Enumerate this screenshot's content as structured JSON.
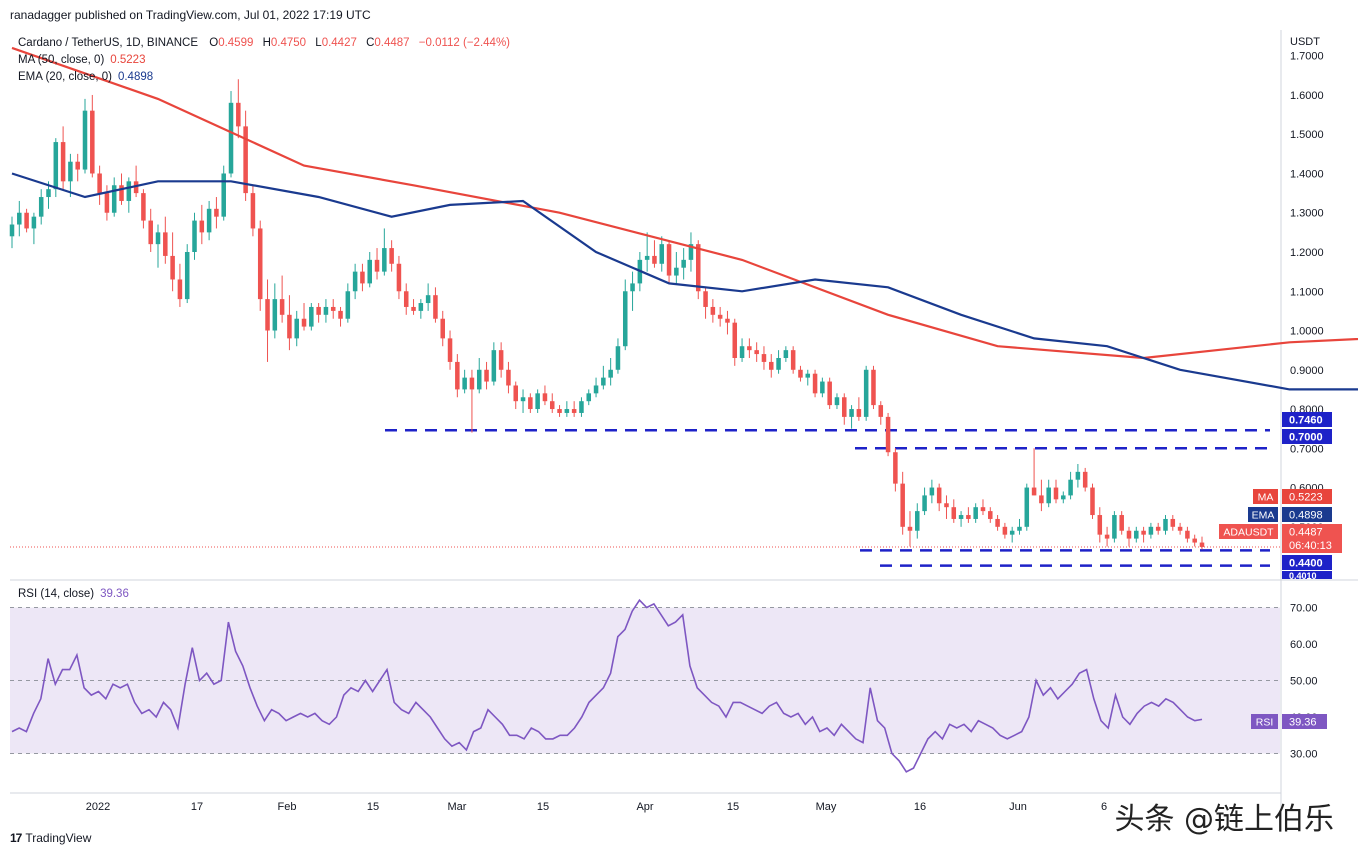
{
  "header": {
    "published": "ranadagger published on TradingView.com, Jul 01, 2022 17:19 UTC"
  },
  "legend": {
    "symbol": "Cardano / TetherUS, 1D, BINANCE",
    "o_label": "O",
    "o": "0.4599",
    "h_label": "H",
    "h": "0.4750",
    "l_label": "L",
    "l": "0.4427",
    "c_label": "C",
    "c": "0.4487",
    "change": "−0.0112 (−2.44%)",
    "ma_label": "MA (50, close, 0)",
    "ma_value": "0.5223",
    "ema_label": "EMA (20, close, 0)",
    "ema_value": "0.4898",
    "rsi_label": "RSI (14, close)",
    "rsi_value": "39.36"
  },
  "colors": {
    "up": "#26a69a",
    "down": "#ef5350",
    "ma": "#e8453c",
    "ema": "#1a3a8f",
    "rsi": "#7e57c2",
    "level": "#1e22c8",
    "rsi_band": "#ede7f6"
  },
  "badges": {
    "unit": "USDT",
    "ma_tag": "MA",
    "ma_val": "0.5223",
    "ema_tag": "EMA",
    "ema_val": "0.4898",
    "sym_tag": "ADAUSDT",
    "sym_val": "0.4487",
    "countdown": "06:40:13",
    "level_1": "0.7460",
    "level_2": "0.7000",
    "level_3": "0.4400",
    "level_4": "0.4010",
    "rsi_tag": "RSI",
    "rsi_val": "39.36"
  },
  "footer": {
    "brand": "TradingView",
    "watermark": "头条 @链上伯乐"
  },
  "chart_data": {
    "type": "candlestick",
    "price_axis": {
      "ticks": [
        "0.4000",
        "0.5000",
        "0.6000",
        "0.7000",
        "0.8000",
        "0.9000",
        "1.0000",
        "1.1000",
        "1.2000",
        "1.3000",
        "1.4000",
        "1.5000",
        "1.6000",
        "1.7000"
      ],
      "range": [
        0.39,
        1.74
      ]
    },
    "rsi_axis": {
      "ticks": [
        "30.00",
        "40.00",
        "50.00",
        "60.00",
        "70.00"
      ],
      "range": [
        20,
        77
      ]
    },
    "x_labels": [
      "2022",
      "17",
      "Feb",
      "15",
      "Mar",
      "15",
      "Apr",
      "15",
      "May",
      "16",
      "Jun",
      "6"
    ],
    "horizontal_levels": [
      0.746,
      0.7,
      0.44,
      0.401
    ],
    "ohlc": [
      [
        1.24,
        1.29,
        1.21,
        1.27
      ],
      [
        1.27,
        1.33,
        1.24,
        1.3
      ],
      [
        1.3,
        1.31,
        1.25,
        1.26
      ],
      [
        1.26,
        1.3,
        1.22,
        1.29
      ],
      [
        1.29,
        1.36,
        1.27,
        1.34
      ],
      [
        1.34,
        1.38,
        1.31,
        1.36
      ],
      [
        1.36,
        1.49,
        1.34,
        1.48
      ],
      [
        1.48,
        1.52,
        1.36,
        1.38
      ],
      [
        1.38,
        1.45,
        1.34,
        1.43
      ],
      [
        1.43,
        1.45,
        1.38,
        1.41
      ],
      [
        1.41,
        1.59,
        1.4,
        1.56
      ],
      [
        1.56,
        1.6,
        1.39,
        1.4
      ],
      [
        1.4,
        1.42,
        1.32,
        1.35
      ],
      [
        1.35,
        1.37,
        1.28,
        1.3
      ],
      [
        1.3,
        1.39,
        1.29,
        1.37
      ],
      [
        1.37,
        1.4,
        1.32,
        1.33
      ],
      [
        1.33,
        1.39,
        1.3,
        1.38
      ],
      [
        1.38,
        1.42,
        1.34,
        1.35
      ],
      [
        1.35,
        1.36,
        1.26,
        1.28
      ],
      [
        1.28,
        1.31,
        1.2,
        1.22
      ],
      [
        1.22,
        1.27,
        1.16,
        1.25
      ],
      [
        1.25,
        1.29,
        1.17,
        1.19
      ],
      [
        1.19,
        1.25,
        1.1,
        1.13
      ],
      [
        1.13,
        1.17,
        1.06,
        1.08
      ],
      [
        1.08,
        1.22,
        1.07,
        1.2
      ],
      [
        1.2,
        1.3,
        1.18,
        1.28
      ],
      [
        1.28,
        1.32,
        1.22,
        1.25
      ],
      [
        1.25,
        1.33,
        1.23,
        1.31
      ],
      [
        1.31,
        1.34,
        1.26,
        1.29
      ],
      [
        1.29,
        1.42,
        1.28,
        1.4
      ],
      [
        1.4,
        1.61,
        1.39,
        1.58
      ],
      [
        1.58,
        1.64,
        1.49,
        1.52
      ],
      [
        1.52,
        1.56,
        1.33,
        1.35
      ],
      [
        1.35,
        1.37,
        1.24,
        1.26
      ],
      [
        1.26,
        1.28,
        1.05,
        1.08
      ],
      [
        1.08,
        1.13,
        0.92,
        1.0
      ],
      [
        1.0,
        1.12,
        0.98,
        1.08
      ],
      [
        1.08,
        1.14,
        1.02,
        1.04
      ],
      [
        1.04,
        1.09,
        0.95,
        0.98
      ],
      [
        0.98,
        1.05,
        0.96,
        1.03
      ],
      [
        1.03,
        1.07,
        1.0,
        1.01
      ],
      [
        1.01,
        1.07,
        1.0,
        1.06
      ],
      [
        1.06,
        1.07,
        1.02,
        1.04
      ],
      [
        1.04,
        1.08,
        1.02,
        1.06
      ],
      [
        1.06,
        1.08,
        1.03,
        1.05
      ],
      [
        1.05,
        1.06,
        1.01,
        1.03
      ],
      [
        1.03,
        1.12,
        1.02,
        1.1
      ],
      [
        1.1,
        1.17,
        1.08,
        1.15
      ],
      [
        1.15,
        1.17,
        1.1,
        1.12
      ],
      [
        1.12,
        1.2,
        1.11,
        1.18
      ],
      [
        1.18,
        1.21,
        1.13,
        1.15
      ],
      [
        1.15,
        1.26,
        1.14,
        1.21
      ],
      [
        1.21,
        1.23,
        1.15,
        1.17
      ],
      [
        1.17,
        1.19,
        1.08,
        1.1
      ],
      [
        1.1,
        1.12,
        1.04,
        1.06
      ],
      [
        1.06,
        1.08,
        1.04,
        1.05
      ],
      [
        1.05,
        1.08,
        1.03,
        1.07
      ],
      [
        1.07,
        1.12,
        1.05,
        1.09
      ],
      [
        1.09,
        1.11,
        1.02,
        1.03
      ],
      [
        1.03,
        1.05,
        0.96,
        0.98
      ],
      [
        0.98,
        1.0,
        0.9,
        0.92
      ],
      [
        0.92,
        0.94,
        0.83,
        0.85
      ],
      [
        0.85,
        0.9,
        0.84,
        0.88
      ],
      [
        0.88,
        0.9,
        0.74,
        0.85
      ],
      [
        0.85,
        0.93,
        0.84,
        0.9
      ],
      [
        0.9,
        0.92,
        0.85,
        0.87
      ],
      [
        0.87,
        0.97,
        0.86,
        0.95
      ],
      [
        0.95,
        0.97,
        0.88,
        0.9
      ],
      [
        0.9,
        0.92,
        0.84,
        0.86
      ],
      [
        0.86,
        0.87,
        0.8,
        0.82
      ],
      [
        0.82,
        0.85,
        0.79,
        0.83
      ],
      [
        0.83,
        0.84,
        0.79,
        0.8
      ],
      [
        0.8,
        0.85,
        0.79,
        0.84
      ],
      [
        0.84,
        0.86,
        0.81,
        0.82
      ],
      [
        0.82,
        0.84,
        0.79,
        0.8
      ],
      [
        0.8,
        0.81,
        0.78,
        0.79
      ],
      [
        0.79,
        0.82,
        0.78,
        0.8
      ],
      [
        0.8,
        0.82,
        0.78,
        0.79
      ],
      [
        0.79,
        0.83,
        0.78,
        0.82
      ],
      [
        0.82,
        0.85,
        0.81,
        0.84
      ],
      [
        0.84,
        0.88,
        0.83,
        0.86
      ],
      [
        0.86,
        0.91,
        0.85,
        0.88
      ],
      [
        0.88,
        0.93,
        0.86,
        0.9
      ],
      [
        0.9,
        0.98,
        0.89,
        0.96
      ],
      [
        0.96,
        1.13,
        0.95,
        1.1
      ],
      [
        1.1,
        1.15,
        1.05,
        1.12
      ],
      [
        1.12,
        1.2,
        1.1,
        1.18
      ],
      [
        1.18,
        1.25,
        1.15,
        1.19
      ],
      [
        1.19,
        1.23,
        1.16,
        1.17
      ],
      [
        1.17,
        1.24,
        1.15,
        1.22
      ],
      [
        1.22,
        1.23,
        1.12,
        1.14
      ],
      [
        1.14,
        1.2,
        1.12,
        1.16
      ],
      [
        1.16,
        1.21,
        1.13,
        1.18
      ],
      [
        1.18,
        1.25,
        1.15,
        1.22
      ],
      [
        1.22,
        1.23,
        1.08,
        1.1
      ],
      [
        1.1,
        1.11,
        1.03,
        1.06
      ],
      [
        1.06,
        1.08,
        1.02,
        1.04
      ],
      [
        1.04,
        1.06,
        1.01,
        1.03
      ],
      [
        1.03,
        1.05,
        0.99,
        1.02
      ],
      [
        1.02,
        1.03,
        0.91,
        0.93
      ],
      [
        0.93,
        0.98,
        0.92,
        0.96
      ],
      [
        0.96,
        0.98,
        0.93,
        0.95
      ],
      [
        0.95,
        0.97,
        0.92,
        0.94
      ],
      [
        0.94,
        0.96,
        0.9,
        0.92
      ],
      [
        0.92,
        0.94,
        0.88,
        0.9
      ],
      [
        0.9,
        0.95,
        0.89,
        0.93
      ],
      [
        0.93,
        0.96,
        0.92,
        0.95
      ],
      [
        0.95,
        0.96,
        0.89,
        0.9
      ],
      [
        0.9,
        0.91,
        0.87,
        0.88
      ],
      [
        0.88,
        0.9,
        0.86,
        0.89
      ],
      [
        0.89,
        0.9,
        0.83,
        0.84
      ],
      [
        0.84,
        0.88,
        0.83,
        0.87
      ],
      [
        0.87,
        0.88,
        0.8,
        0.81
      ],
      [
        0.81,
        0.84,
        0.8,
        0.83
      ],
      [
        0.83,
        0.84,
        0.76,
        0.78
      ],
      [
        0.78,
        0.81,
        0.75,
        0.8
      ],
      [
        0.8,
        0.83,
        0.77,
        0.78
      ],
      [
        0.78,
        0.91,
        0.77,
        0.9
      ],
      [
        0.9,
        0.91,
        0.8,
        0.81
      ],
      [
        0.81,
        0.82,
        0.76,
        0.78
      ],
      [
        0.78,
        0.79,
        0.68,
        0.69
      ],
      [
        0.69,
        0.7,
        0.59,
        0.61
      ],
      [
        0.61,
        0.64,
        0.48,
        0.5
      ],
      [
        0.5,
        0.54,
        0.45,
        0.49
      ],
      [
        0.49,
        0.56,
        0.47,
        0.54
      ],
      [
        0.54,
        0.6,
        0.53,
        0.58
      ],
      [
        0.58,
        0.62,
        0.56,
        0.6
      ],
      [
        0.6,
        0.61,
        0.54,
        0.56
      ],
      [
        0.56,
        0.58,
        0.52,
        0.55
      ],
      [
        0.55,
        0.57,
        0.51,
        0.52
      ],
      [
        0.52,
        0.54,
        0.5,
        0.53
      ],
      [
        0.53,
        0.55,
        0.51,
        0.52
      ],
      [
        0.52,
        0.56,
        0.51,
        0.55
      ],
      [
        0.55,
        0.57,
        0.53,
        0.54
      ],
      [
        0.54,
        0.55,
        0.51,
        0.52
      ],
      [
        0.52,
        0.53,
        0.49,
        0.5
      ],
      [
        0.5,
        0.51,
        0.47,
        0.48
      ],
      [
        0.48,
        0.5,
        0.46,
        0.49
      ],
      [
        0.49,
        0.52,
        0.48,
        0.5
      ],
      [
        0.5,
        0.61,
        0.49,
        0.6
      ],
      [
        0.6,
        0.7,
        0.58,
        0.58
      ],
      [
        0.58,
        0.62,
        0.54,
        0.56
      ],
      [
        0.56,
        0.62,
        0.55,
        0.6
      ],
      [
        0.6,
        0.62,
        0.56,
        0.57
      ],
      [
        0.57,
        0.59,
        0.56,
        0.58
      ],
      [
        0.58,
        0.64,
        0.57,
        0.62
      ],
      [
        0.62,
        0.66,
        0.6,
        0.64
      ],
      [
        0.64,
        0.65,
        0.59,
        0.6
      ],
      [
        0.6,
        0.61,
        0.52,
        0.53
      ],
      [
        0.53,
        0.55,
        0.46,
        0.48
      ],
      [
        0.48,
        0.5,
        0.45,
        0.47
      ],
      [
        0.47,
        0.54,
        0.46,
        0.53
      ],
      [
        0.53,
        0.54,
        0.48,
        0.49
      ],
      [
        0.49,
        0.5,
        0.45,
        0.47
      ],
      [
        0.47,
        0.5,
        0.46,
        0.49
      ],
      [
        0.49,
        0.5,
        0.46,
        0.48
      ],
      [
        0.48,
        0.51,
        0.47,
        0.5
      ],
      [
        0.5,
        0.51,
        0.48,
        0.49
      ],
      [
        0.49,
        0.53,
        0.48,
        0.52
      ],
      [
        0.52,
        0.53,
        0.49,
        0.5
      ],
      [
        0.5,
        0.51,
        0.48,
        0.49
      ],
      [
        0.49,
        0.5,
        0.46,
        0.47
      ],
      [
        0.47,
        0.48,
        0.45,
        0.4599
      ],
      [
        0.4599,
        0.475,
        0.4427,
        0.4487
      ]
    ],
    "rsi": [
      36,
      37,
      36,
      41,
      45,
      56,
      49,
      53,
      53,
      57,
      48,
      46,
      47,
      45,
      49,
      48,
      49,
      44,
      41,
      42,
      40,
      44,
      42,
      37,
      49,
      59,
      50,
      52,
      49,
      50,
      66,
      58,
      54,
      48,
      43,
      39,
      42,
      41,
      39,
      40,
      41,
      40,
      41,
      39,
      38,
      40,
      46,
      48,
      47,
      50,
      47,
      50,
      53,
      44,
      42,
      41,
      44,
      42,
      40,
      37,
      34,
      32,
      33,
      31,
      36,
      37,
      42,
      40,
      38,
      35,
      35,
      34,
      37,
      36,
      34,
      34,
      35,
      35,
      37,
      40,
      44,
      46,
      48,
      52,
      62,
      64,
      69,
      72,
      70,
      71,
      68,
      65,
      66,
      68,
      54,
      48,
      46,
      44,
      43,
      40,
      44,
      44,
      43,
      42,
      41,
      43,
      44,
      41,
      40,
      41,
      38,
      40,
      36,
      37,
      35,
      38,
      36,
      34,
      33,
      48,
      39,
      37,
      30,
      28,
      25,
      26,
      30,
      34,
      36,
      34,
      38,
      37,
      38,
      36,
      39,
      38,
      37,
      35,
      34,
      35,
      36,
      40,
      50,
      46,
      48,
      45,
      47,
      49,
      52,
      53,
      45,
      39,
      37,
      46,
      40,
      38,
      41,
      43,
      44,
      43,
      45,
      44,
      42,
      40,
      39,
      39.36
    ],
    "ma50_points": [
      [
        0,
        1.72
      ],
      [
        20,
        1.59
      ],
      [
        40,
        1.42
      ],
      [
        55,
        1.37
      ],
      [
        75,
        1.3
      ],
      [
        100,
        1.18
      ],
      [
        120,
        1.04
      ],
      [
        135,
        0.96
      ],
      [
        155,
        0.93
      ],
      [
        175,
        0.97
      ],
      [
        195,
        0.988
      ],
      [
        215,
        0.994
      ],
      [
        232,
        0.99
      ],
      [
        248,
        0.955
      ],
      [
        265,
        0.9
      ],
      [
        285,
        0.82
      ],
      [
        305,
        0.725
      ],
      [
        320,
        0.685
      ],
      [
        335,
        0.665
      ],
      [
        350,
        0.625
      ],
      [
        365,
        0.59
      ],
      [
        380,
        0.56
      ],
      [
        393,
        0.537
      ],
      [
        400,
        0.53
      ],
      [
        411,
        0.5223
      ]
    ],
    "ema20_points": [
      [
        0,
        1.4
      ],
      [
        10,
        1.34
      ],
      [
        20,
        1.38
      ],
      [
        30,
        1.38
      ],
      [
        42,
        1.34
      ],
      [
        52,
        1.29
      ],
      [
        60,
        1.32
      ],
      [
        70,
        1.33
      ],
      [
        80,
        1.2
      ],
      [
        90,
        1.12
      ],
      [
        100,
        1.1
      ],
      [
        110,
        1.13
      ],
      [
        120,
        1.11
      ],
      [
        130,
        1.04
      ],
      [
        140,
        0.98
      ],
      [
        150,
        0.96
      ],
      [
        160,
        0.9
      ],
      [
        175,
        0.85
      ],
      [
        190,
        0.85
      ],
      [
        200,
        0.96
      ],
      [
        214,
        1.06
      ],
      [
        225,
        1.08
      ],
      [
        240,
        1.05
      ],
      [
        255,
        0.985
      ],
      [
        270,
        0.93
      ],
      [
        285,
        0.86
      ],
      [
        300,
        0.8
      ],
      [
        310,
        0.73
      ],
      [
        318,
        0.65
      ],
      [
        330,
        0.61
      ],
      [
        345,
        0.56
      ],
      [
        358,
        0.545
      ],
      [
        368,
        0.578
      ],
      [
        378,
        0.565
      ],
      [
        388,
        0.525
      ],
      [
        400,
        0.508
      ],
      [
        411,
        0.4898
      ]
    ]
  }
}
